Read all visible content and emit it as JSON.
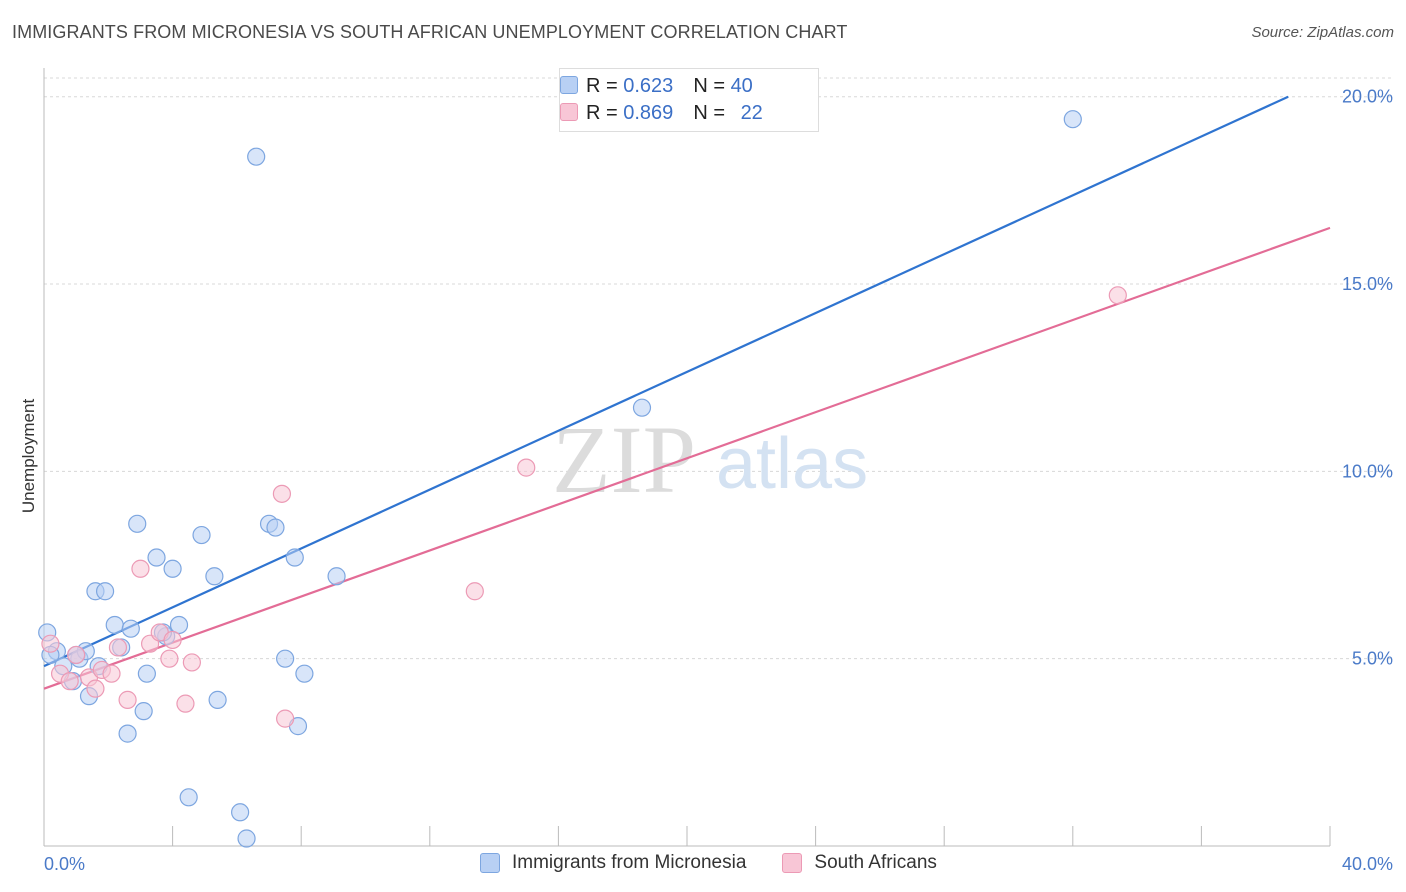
{
  "title": "IMMIGRANTS FROM MICRONESIA VS SOUTH AFRICAN UNEMPLOYMENT CORRELATION CHART",
  "source": "Source: ZipAtlas.com",
  "watermark": {
    "zip": "ZIP",
    "atlas": "atlas"
  },
  "colors": {
    "blue_fill": "#b8d0f4",
    "blue_stroke": "#7da6e0",
    "blue_line": "#2f74d0",
    "pink_fill": "#f8c6d6",
    "pink_stroke": "#ec9ab5",
    "pink_line": "#e36c96",
    "tick_text": "#4a7ac8",
    "grid": "#d8d8d8"
  },
  "stats_legend": {
    "rows": [
      {
        "r_label": "R = ",
        "r_value": "0.623",
        "n_label": "N = ",
        "n_value": "40"
      },
      {
        "r_label": "R = ",
        "r_value": "0.869",
        "n_label": "N = ",
        "n_value": "22"
      }
    ]
  },
  "bottom_legend": {
    "series1": "Immigrants from Micronesia",
    "series2": "South Africans"
  },
  "chart_data": {
    "type": "scatter",
    "title": "IMMIGRANTS FROM MICRONESIA VS SOUTH AFRICAN UNEMPLOYMENT CORRELATION CHART",
    "xlabel": "",
    "ylabel": "Unemployment",
    "xlim": [
      0,
      40
    ],
    "ylim": [
      0,
      20.5
    ],
    "x_ticks": [
      0,
      4,
      8,
      12,
      16,
      20,
      24,
      28,
      32,
      36,
      40
    ],
    "x_tick_labels": {
      "0": "0.0%",
      "40": "40.0%"
    },
    "y_ticks": [
      5,
      10,
      15,
      20
    ],
    "y_tick_labels": [
      "5.0%",
      "10.0%",
      "15.0%",
      "20.0%"
    ],
    "grid": true,
    "series": [
      {
        "name": "Immigrants from Micronesia",
        "color": "#b8d0f4",
        "points": [
          [
            0.1,
            5.7
          ],
          [
            0.4,
            5.2
          ],
          [
            0.6,
            4.8
          ],
          [
            0.9,
            4.4
          ],
          [
            1.1,
            5.0
          ],
          [
            1.3,
            5.2
          ],
          [
            1.4,
            4.0
          ],
          [
            1.6,
            6.8
          ],
          [
            1.7,
            4.8
          ],
          [
            1.9,
            6.8
          ],
          [
            2.2,
            5.9
          ],
          [
            2.4,
            5.3
          ],
          [
            2.6,
            3.0
          ],
          [
            2.7,
            5.8
          ],
          [
            2.9,
            8.6
          ],
          [
            3.1,
            3.6
          ],
          [
            3.2,
            4.6
          ],
          [
            3.5,
            7.7
          ],
          [
            3.8,
            5.6
          ],
          [
            4.0,
            7.4
          ],
          [
            4.2,
            5.9
          ],
          [
            4.5,
            1.3
          ],
          [
            4.9,
            8.3
          ],
          [
            5.3,
            7.2
          ],
          [
            5.4,
            3.9
          ],
          [
            6.1,
            0.9
          ],
          [
            6.3,
            0.2
          ],
          [
            6.6,
            18.4
          ],
          [
            7.0,
            8.6
          ],
          [
            7.2,
            8.5
          ],
          [
            7.5,
            5.0
          ],
          [
            7.8,
            7.7
          ],
          [
            7.9,
            3.2
          ],
          [
            8.1,
            4.6
          ],
          [
            9.1,
            7.2
          ],
          [
            18.6,
            11.7
          ],
          [
            32.0,
            19.4
          ],
          [
            0.2,
            5.1
          ],
          [
            3.7,
            5.7
          ],
          [
            1.0,
            5.1
          ]
        ],
        "trend": {
          "x": [
            0,
            38.7
          ],
          "y": [
            4.8,
            20.0
          ]
        }
      },
      {
        "name": "South Africans",
        "color": "#f8c6d6",
        "points": [
          [
            0.2,
            5.4
          ],
          [
            0.5,
            4.6
          ],
          [
            0.8,
            4.4
          ],
          [
            1.0,
            5.1
          ],
          [
            1.4,
            4.5
          ],
          [
            1.6,
            4.2
          ],
          [
            1.8,
            4.7
          ],
          [
            2.1,
            4.6
          ],
          [
            2.3,
            5.3
          ],
          [
            2.6,
            3.9
          ],
          [
            3.0,
            7.4
          ],
          [
            3.3,
            5.4
          ],
          [
            3.6,
            5.7
          ],
          [
            3.9,
            5.0
          ],
          [
            4.0,
            5.5
          ],
          [
            4.4,
            3.8
          ],
          [
            4.6,
            4.9
          ],
          [
            7.4,
            9.4
          ],
          [
            7.5,
            3.4
          ],
          [
            13.4,
            6.8
          ],
          [
            15.0,
            10.1
          ],
          [
            33.4,
            14.7
          ]
        ],
        "trend": {
          "x": [
            0,
            40
          ],
          "y": [
            4.2,
            16.5
          ]
        }
      }
    ]
  }
}
